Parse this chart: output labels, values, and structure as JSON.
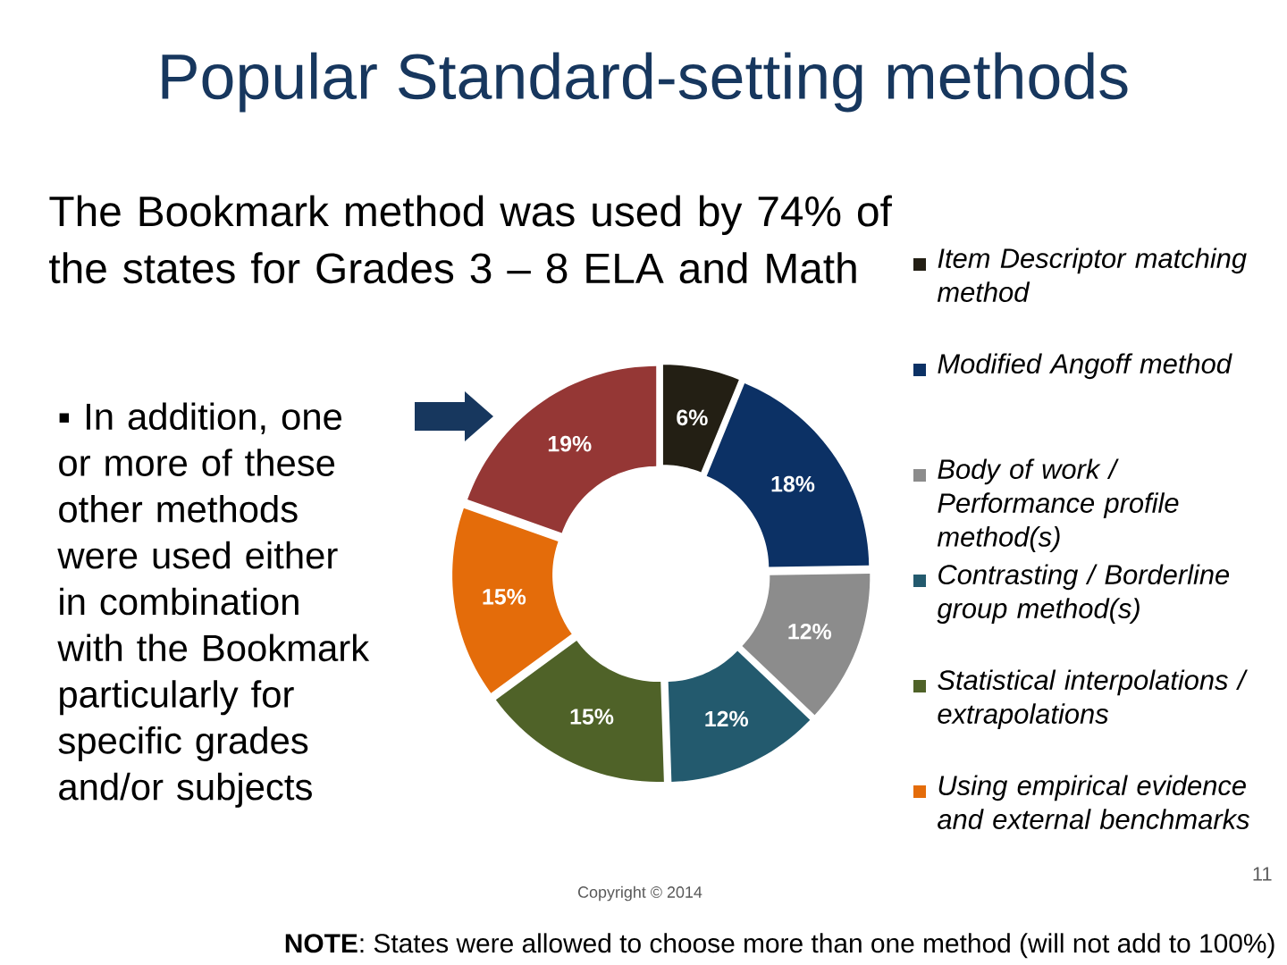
{
  "chart_data": {
    "type": "donut",
    "title": "Popular Standard-setting methods",
    "subtitle": "The Bookmark method was used by 74% of the states for Grades 3 – 8 ELA and Math",
    "categories": [
      "Item Descriptor matching method",
      "Modified Angoff method",
      "Body of work / Performance profile method(s)",
      "Contrasting / Borderline group method(s)",
      "Statistical interpolations / extrapolations",
      "Using empirical evidence and external benchmarks",
      null
    ],
    "values": [
      6,
      18,
      12,
      12,
      15,
      15,
      19
    ],
    "colors": [
      "#231f14",
      "#0c3165",
      "#8c8c8c",
      "#235a6e",
      "#4f6228",
      "#e46c0a",
      "#953735"
    ],
    "value_labels": [
      "6%",
      "18%",
      "12%",
      "12%",
      "15%",
      "15%",
      "19%"
    ],
    "legend": "right",
    "annotations": [
      "▪ In addition, one or more of these other methods were used either in combination with the Bookmark particularly for specific grades and/or subjects",
      "Copyright © 2014",
      "11",
      "**NOTE**: States were allowed to choose more than one method (will not add to 100%)"
    ]
  }
}
